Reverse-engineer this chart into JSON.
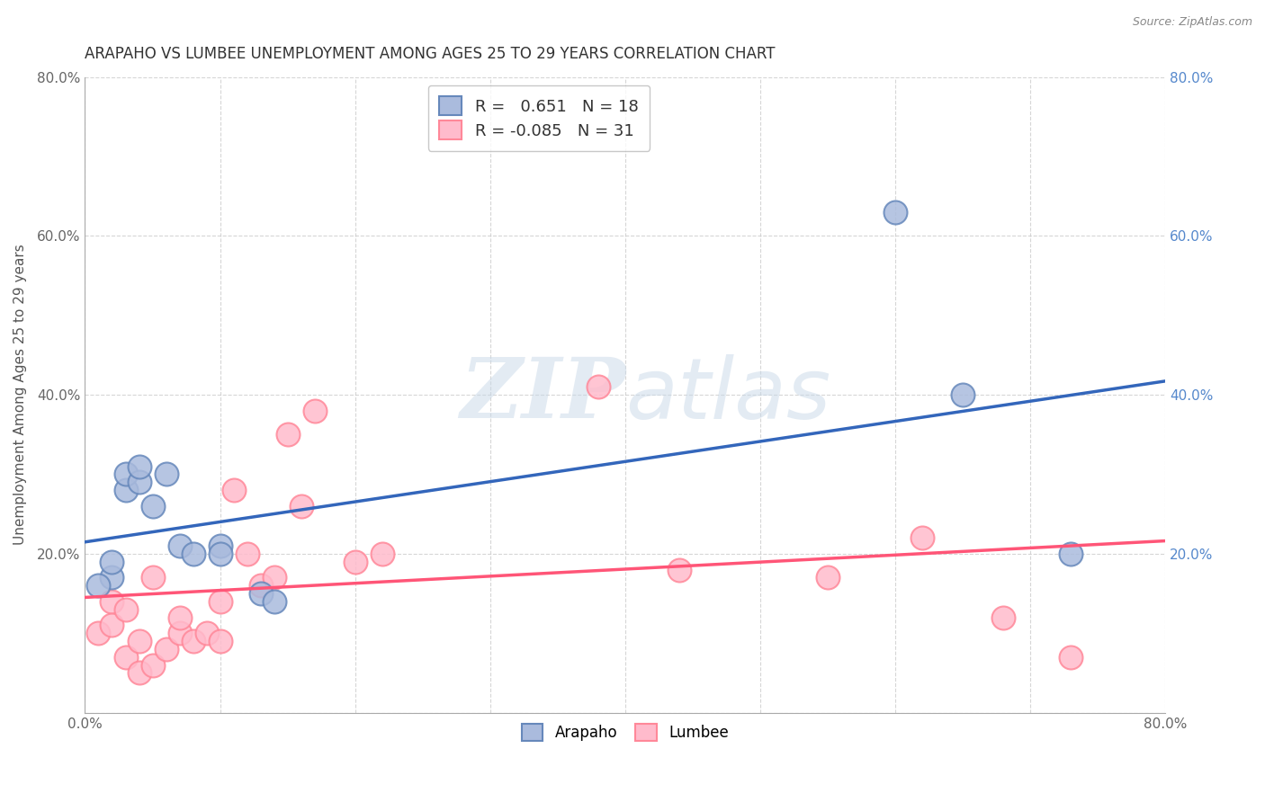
{
  "title": "ARAPAHO VS LUMBEE UNEMPLOYMENT AMONG AGES 25 TO 29 YEARS CORRELATION CHART",
  "source": "Source: ZipAtlas.com",
  "ylabel": "Unemployment Among Ages 25 to 29 years",
  "xlim": [
    0.0,
    0.8
  ],
  "ylim": [
    0.0,
    0.8
  ],
  "xticks": [
    0.0,
    0.1,
    0.2,
    0.3,
    0.4,
    0.5,
    0.6,
    0.7,
    0.8
  ],
  "xticklabels": [
    "0.0%",
    "",
    "",
    "",
    "",
    "",
    "",
    "",
    "80.0%"
  ],
  "yticks": [
    0.0,
    0.2,
    0.4,
    0.6,
    0.8
  ],
  "yticklabels": [
    "",
    "20.0%",
    "40.0%",
    "60.0%",
    "80.0%"
  ],
  "right_yticklabels": [
    "",
    "20.0%",
    "40.0%",
    "60.0%",
    "80.0%"
  ],
  "arapaho_R": 0.651,
  "arapaho_N": 18,
  "lumbee_R": -0.085,
  "lumbee_N": 31,
  "arapaho_color": "#aabbdd",
  "arapaho_edge_color": "#6688bb",
  "lumbee_color": "#ffbbcc",
  "lumbee_edge_color": "#ff8899",
  "arapaho_line_color": "#3366bb",
  "lumbee_line_color": "#ff5577",
  "arapaho_x": [
    0.02,
    0.02,
    0.03,
    0.03,
    0.04,
    0.04,
    0.05,
    0.06,
    0.07,
    0.08,
    0.1,
    0.1,
    0.13,
    0.14,
    0.6,
    0.65,
    0.73,
    0.01
  ],
  "arapaho_y": [
    0.17,
    0.19,
    0.28,
    0.3,
    0.29,
    0.31,
    0.26,
    0.3,
    0.21,
    0.2,
    0.21,
    0.2,
    0.15,
    0.14,
    0.63,
    0.4,
    0.2,
    0.16
  ],
  "lumbee_x": [
    0.01,
    0.02,
    0.02,
    0.03,
    0.03,
    0.04,
    0.04,
    0.05,
    0.06,
    0.07,
    0.07,
    0.08,
    0.09,
    0.1,
    0.1,
    0.11,
    0.12,
    0.13,
    0.14,
    0.15,
    0.16,
    0.17,
    0.2,
    0.22,
    0.38,
    0.44,
    0.55,
    0.62,
    0.68,
    0.73,
    0.05
  ],
  "lumbee_y": [
    0.1,
    0.14,
    0.11,
    0.07,
    0.13,
    0.09,
    0.05,
    0.06,
    0.08,
    0.1,
    0.12,
    0.09,
    0.1,
    0.14,
    0.09,
    0.28,
    0.2,
    0.16,
    0.17,
    0.35,
    0.26,
    0.38,
    0.19,
    0.2,
    0.41,
    0.18,
    0.17,
    0.22,
    0.12,
    0.07,
    0.17
  ],
  "watermark_zip": "ZIP",
  "watermark_atlas": "atlas",
  "background_color": "#ffffff",
  "grid_color": "#cccccc",
  "title_fontsize": 12,
  "label_fontsize": 11,
  "tick_fontsize": 11,
  "right_tick_color": "#5588cc"
}
